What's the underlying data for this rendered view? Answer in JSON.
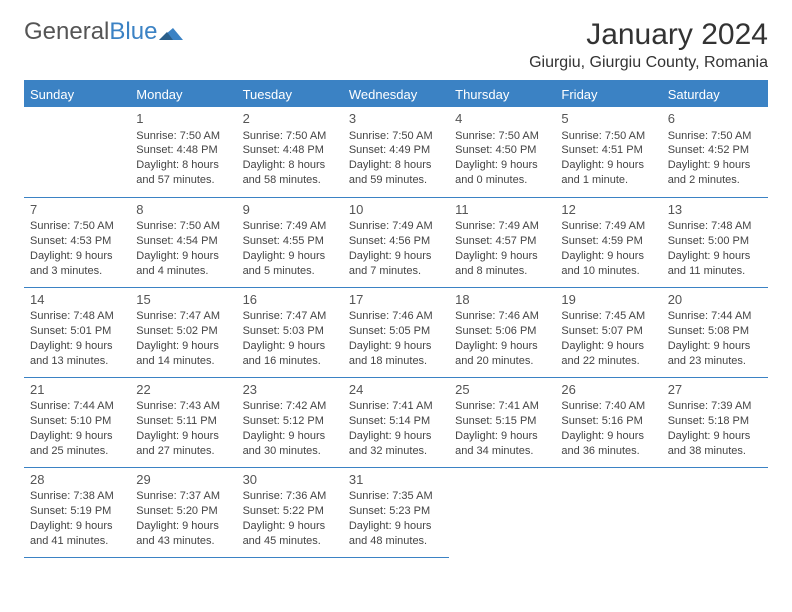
{
  "brand": {
    "part1": "General",
    "part2": "Blue"
  },
  "title": "January 2024",
  "location": "Giurgiu, Giurgiu County, Romania",
  "colors": {
    "accent": "#3b82c4",
    "text": "#333333",
    "bg": "#ffffff"
  },
  "dayHeaders": [
    "Sunday",
    "Monday",
    "Tuesday",
    "Wednesday",
    "Thursday",
    "Friday",
    "Saturday"
  ],
  "startOffset": 1,
  "daysInMonth": 31,
  "days": {
    "1": {
      "sunrise": "7:50 AM",
      "sunset": "4:48 PM",
      "daylight": "8 hours and 57 minutes."
    },
    "2": {
      "sunrise": "7:50 AM",
      "sunset": "4:48 PM",
      "daylight": "8 hours and 58 minutes."
    },
    "3": {
      "sunrise": "7:50 AM",
      "sunset": "4:49 PM",
      "daylight": "8 hours and 59 minutes."
    },
    "4": {
      "sunrise": "7:50 AM",
      "sunset": "4:50 PM",
      "daylight": "9 hours and 0 minutes."
    },
    "5": {
      "sunrise": "7:50 AM",
      "sunset": "4:51 PM",
      "daylight": "9 hours and 1 minute."
    },
    "6": {
      "sunrise": "7:50 AM",
      "sunset": "4:52 PM",
      "daylight": "9 hours and 2 minutes."
    },
    "7": {
      "sunrise": "7:50 AM",
      "sunset": "4:53 PM",
      "daylight": "9 hours and 3 minutes."
    },
    "8": {
      "sunrise": "7:50 AM",
      "sunset": "4:54 PM",
      "daylight": "9 hours and 4 minutes."
    },
    "9": {
      "sunrise": "7:49 AM",
      "sunset": "4:55 PM",
      "daylight": "9 hours and 5 minutes."
    },
    "10": {
      "sunrise": "7:49 AM",
      "sunset": "4:56 PM",
      "daylight": "9 hours and 7 minutes."
    },
    "11": {
      "sunrise": "7:49 AM",
      "sunset": "4:57 PM",
      "daylight": "9 hours and 8 minutes."
    },
    "12": {
      "sunrise": "7:49 AM",
      "sunset": "4:59 PM",
      "daylight": "9 hours and 10 minutes."
    },
    "13": {
      "sunrise": "7:48 AM",
      "sunset": "5:00 PM",
      "daylight": "9 hours and 11 minutes."
    },
    "14": {
      "sunrise": "7:48 AM",
      "sunset": "5:01 PM",
      "daylight": "9 hours and 13 minutes."
    },
    "15": {
      "sunrise": "7:47 AM",
      "sunset": "5:02 PM",
      "daylight": "9 hours and 14 minutes."
    },
    "16": {
      "sunrise": "7:47 AM",
      "sunset": "5:03 PM",
      "daylight": "9 hours and 16 minutes."
    },
    "17": {
      "sunrise": "7:46 AM",
      "sunset": "5:05 PM",
      "daylight": "9 hours and 18 minutes."
    },
    "18": {
      "sunrise": "7:46 AM",
      "sunset": "5:06 PM",
      "daylight": "9 hours and 20 minutes."
    },
    "19": {
      "sunrise": "7:45 AM",
      "sunset": "5:07 PM",
      "daylight": "9 hours and 22 minutes."
    },
    "20": {
      "sunrise": "7:44 AM",
      "sunset": "5:08 PM",
      "daylight": "9 hours and 23 minutes."
    },
    "21": {
      "sunrise": "7:44 AM",
      "sunset": "5:10 PM",
      "daylight": "9 hours and 25 minutes."
    },
    "22": {
      "sunrise": "7:43 AM",
      "sunset": "5:11 PM",
      "daylight": "9 hours and 27 minutes."
    },
    "23": {
      "sunrise": "7:42 AM",
      "sunset": "5:12 PM",
      "daylight": "9 hours and 30 minutes."
    },
    "24": {
      "sunrise": "7:41 AM",
      "sunset": "5:14 PM",
      "daylight": "9 hours and 32 minutes."
    },
    "25": {
      "sunrise": "7:41 AM",
      "sunset": "5:15 PM",
      "daylight": "9 hours and 34 minutes."
    },
    "26": {
      "sunrise": "7:40 AM",
      "sunset": "5:16 PM",
      "daylight": "9 hours and 36 minutes."
    },
    "27": {
      "sunrise": "7:39 AM",
      "sunset": "5:18 PM",
      "daylight": "9 hours and 38 minutes."
    },
    "28": {
      "sunrise": "7:38 AM",
      "sunset": "5:19 PM",
      "daylight": "9 hours and 41 minutes."
    },
    "29": {
      "sunrise": "7:37 AM",
      "sunset": "5:20 PM",
      "daylight": "9 hours and 43 minutes."
    },
    "30": {
      "sunrise": "7:36 AM",
      "sunset": "5:22 PM",
      "daylight": "9 hours and 45 minutes."
    },
    "31": {
      "sunrise": "7:35 AM",
      "sunset": "5:23 PM",
      "daylight": "9 hours and 48 minutes."
    }
  },
  "labels": {
    "sunrise": "Sunrise: ",
    "sunset": "Sunset: ",
    "daylight": "Daylight: "
  }
}
